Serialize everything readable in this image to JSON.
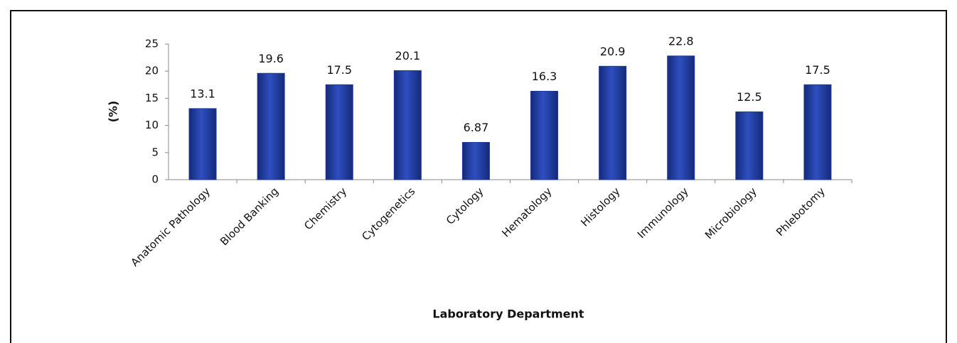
{
  "chart_data": {
    "type": "bar",
    "y_label": "(%)",
    "x_label": "Laboratory Department",
    "categories": [
      "Anatomic Pathology",
      "Blood Banking",
      "Chemistry",
      "Cytogenetics",
      "Cytology",
      "Hematology",
      "Histology",
      "Immunology",
      "Microbiology",
      "Phlebotomy"
    ],
    "values": [
      13.1,
      19.6,
      17.5,
      20.1,
      6.87,
      16.3,
      20.9,
      22.8,
      12.5,
      17.5
    ],
    "color": "#1f3a9c",
    "ylim": [
      0,
      25
    ],
    "yticks": [
      0,
      5,
      10,
      15,
      20,
      25
    ],
    "grid": false
  }
}
